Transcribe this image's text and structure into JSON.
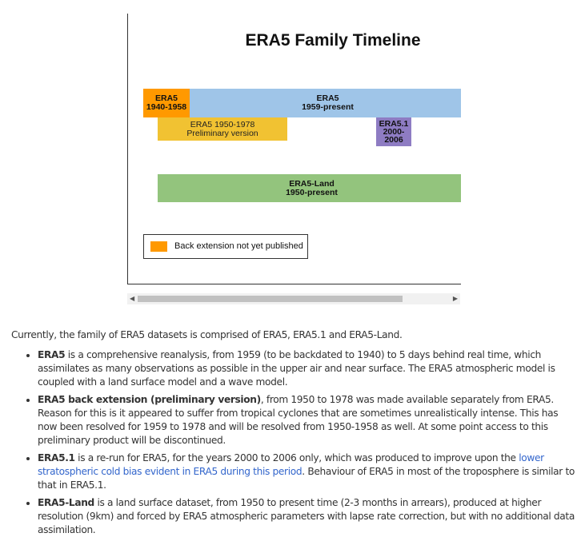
{
  "figure": {
    "title": "ERA5 Family Timeline",
    "bars": [
      {
        "line1": "ERA5",
        "line2": "1940-1958",
        "color": "#ff9900"
      },
      {
        "line1": "ERA5",
        "line2": "1959-present",
        "color": "#9fc5e8"
      },
      {
        "line1": "ERA5 1950-1978",
        "line2": "Preliminary version",
        "color": "#f1c232"
      },
      {
        "line1": "ERA5.1",
        "line2": "2000-",
        "line3": "2006",
        "color": "#8e7cc3"
      },
      {
        "line1": "ERA5-Land",
        "line2": "1950-present",
        "color": "#93c47d"
      }
    ],
    "legend": {
      "label": "Back extension not yet published",
      "color": "#ff9900"
    }
  },
  "content": {
    "intro": "Currently, the family of ERA5 datasets is comprised of ERA5, ERA5.1 and ERA5-Land.",
    "items": [
      {
        "bold": "ERA5",
        "text": " is a comprehensive reanalysis, from 1959 (to be backdated to 1940) to 5 days behind real time, which assimilates as many observations as possible in the upper air and near surface. The ERA5 atmospheric model is coupled with a land surface model and a wave model."
      },
      {
        "bold": "ERA5 back extension (preliminary version)",
        "text": ", from 1950 to 1978 was made available separately from ERA5.  Reason for this is it appeared to suffer from tropical cyclones that are sometimes unrealistically intense. This has now been resolved for 1959 to 1978 and will be resolved from 1950-1958 as well. At some point access to this preliminary product will be discontinued."
      },
      {
        "bold": "ERA5.1",
        "text": " is a re-run for ERA5, for the years 2000 to 2006 only, which was produced to improve upon the ",
        "link": "lower stratospheric cold bias evident in ERA5 during this period",
        "text2": ". Behaviour of ERA5 in most of the troposphere is similar to that in ERA5.1."
      },
      {
        "bold": "ERA5-Land",
        "text": " is a land surface dataset, from 1950 to present time (2-3 months in arrears), produced at higher resolution (9km) and forced by ERA5 atmospheric parameters with lapse rate correction, but with no additional data assimilation."
      }
    ]
  }
}
